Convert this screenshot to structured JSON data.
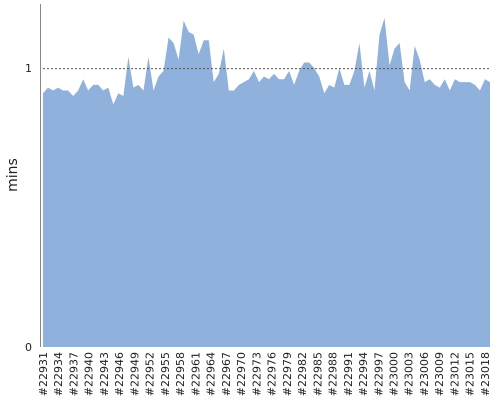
{
  "chart_data": {
    "type": "area",
    "title": "",
    "xlabel": "",
    "ylabel": "mins",
    "ylim": [
      0,
      1.23
    ],
    "y_ticks": [
      "0",
      "1"
    ],
    "reference_line": {
      "value": 1,
      "style": "dotted"
    },
    "grid": false,
    "legend": "none",
    "x_tick_labels": [
      "#22931",
      "#22934",
      "#22937",
      "#22940",
      "#22943",
      "#22946",
      "#22949",
      "#22952",
      "#22955",
      "#22958",
      "#22961",
      "#22964",
      "#22967",
      "#22970",
      "#22973",
      "#22976",
      "#22979",
      "#22982",
      "#22985",
      "#22988",
      "#22991",
      "#22994",
      "#22997",
      "#23000",
      "#23003",
      "#23006",
      "#23009",
      "#23012",
      "#23015",
      "#23018"
    ],
    "x_start": 22931,
    "x_end": 23019,
    "values": [
      0.91,
      0.93,
      0.92,
      0.93,
      0.92,
      0.92,
      0.9,
      0.92,
      0.96,
      0.92,
      0.94,
      0.94,
      0.92,
      0.93,
      0.87,
      0.91,
      0.9,
      1.04,
      0.93,
      0.94,
      0.92,
      1.04,
      0.92,
      0.97,
      0.99,
      1.11,
      1.09,
      1.03,
      1.17,
      1.13,
      1.12,
      1.05,
      1.1,
      1.1,
      0.95,
      0.98,
      1.07,
      0.92,
      0.92,
      0.94,
      0.95,
      0.96,
      0.99,
      0.95,
      0.97,
      0.96,
      0.98,
      0.96,
      0.96,
      0.99,
      0.94,
      0.99,
      1.02,
      1.02,
      1.0,
      0.97,
      0.91,
      0.94,
      0.93,
      1.0,
      0.94,
      0.94,
      0.99,
      1.09,
      0.93,
      0.99,
      0.92,
      1.12,
      1.18,
      1.01,
      1.07,
      1.09,
      0.95,
      0.92,
      1.08,
      1.03,
      0.95,
      0.96,
      0.94,
      0.93,
      0.96,
      0.92,
      0.96,
      0.95,
      0.95,
      0.95,
      0.94,
      0.92,
      0.96,
      0.95
    ],
    "colors": {
      "fill": "#8fb1db",
      "reference_line": "#555555",
      "axis": "#888888",
      "text": "#222222"
    }
  }
}
